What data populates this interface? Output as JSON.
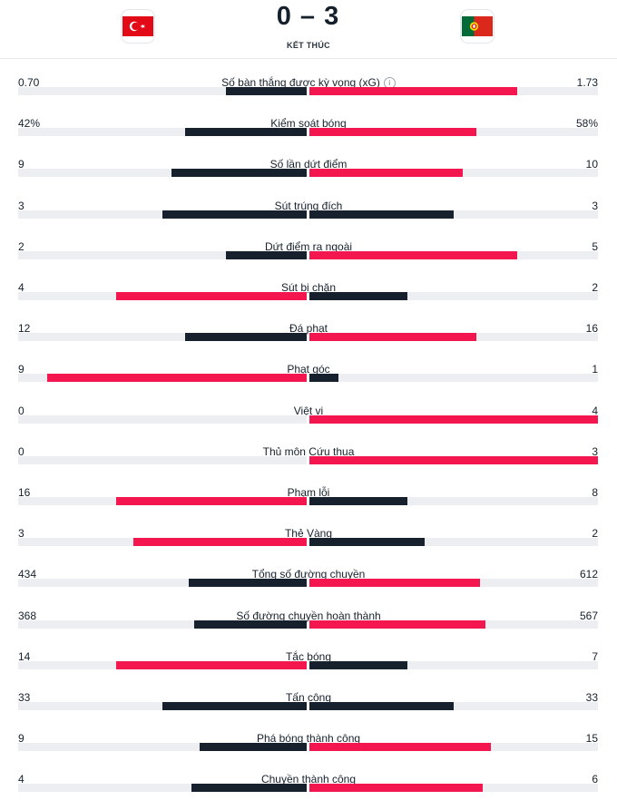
{
  "match": {
    "home_score": "0",
    "separator": "–",
    "away_score": "3",
    "status": "KẾT THÚC"
  },
  "colors": {
    "dark": "#17212e",
    "red": "#f4164f",
    "track": "#eceef1"
  },
  "icons": {
    "home_flag": "turkey-flag-icon",
    "away_flag": "portugal-flag-icon",
    "info": "info-icon"
  },
  "stats": [
    {
      "label": "Số bàn thắng được kỳ vọng (xG)",
      "home": "0.70",
      "away": "1.73",
      "home_fill": 0.28,
      "away_fill": 0.72,
      "home_color": "dark",
      "away_color": "red",
      "info": true
    },
    {
      "label": "Kiểm soát bóng",
      "home": "42%",
      "away": "58%",
      "home_fill": 0.42,
      "away_fill": 0.58,
      "home_color": "dark",
      "away_color": "red"
    },
    {
      "label": "Số lần dứt điểm",
      "home": "9",
      "away": "10",
      "home_fill": 0.47,
      "away_fill": 0.53,
      "home_color": "dark",
      "away_color": "red"
    },
    {
      "label": "Sút trúng đích",
      "home": "3",
      "away": "3",
      "home_fill": 0.5,
      "away_fill": 0.5,
      "home_color": "dark",
      "away_color": "dark"
    },
    {
      "label": "Dứt điểm ra ngoài",
      "home": "2",
      "away": "5",
      "home_fill": 0.28,
      "away_fill": 0.72,
      "home_color": "dark",
      "away_color": "red"
    },
    {
      "label": "Sút bị chặn",
      "home": "4",
      "away": "2",
      "home_fill": 0.66,
      "away_fill": 0.34,
      "home_color": "red",
      "away_color": "dark"
    },
    {
      "label": "Đá phạt",
      "home": "12",
      "away": "16",
      "home_fill": 0.42,
      "away_fill": 0.58,
      "home_color": "dark",
      "away_color": "red"
    },
    {
      "label": "Phạt góc",
      "home": "9",
      "away": "1",
      "home_fill": 0.9,
      "away_fill": 0.1,
      "home_color": "red",
      "away_color": "dark"
    },
    {
      "label": "Việt vị",
      "home": "0",
      "away": "4",
      "home_fill": 0,
      "away_fill": 1,
      "home_color": "dark",
      "away_color": "red"
    },
    {
      "label": "Thủ môn Cứu thua",
      "home": "0",
      "away": "3",
      "home_fill": 0,
      "away_fill": 1,
      "home_color": "dark",
      "away_color": "red"
    },
    {
      "label": "Phạm lỗi",
      "home": "16",
      "away": "8",
      "home_fill": 0.66,
      "away_fill": 0.34,
      "home_color": "red",
      "away_color": "dark"
    },
    {
      "label": "Thẻ Vàng",
      "home": "3",
      "away": "2",
      "home_fill": 0.6,
      "away_fill": 0.4,
      "home_color": "red",
      "away_color": "dark"
    },
    {
      "label": "Tổng số đường chuyền",
      "home": "434",
      "away": "612",
      "home_fill": 0.41,
      "away_fill": 0.59,
      "home_color": "dark",
      "away_color": "red"
    },
    {
      "label": "Số đường chuyền hoàn thành",
      "home": "368",
      "away": "567",
      "home_fill": 0.39,
      "away_fill": 0.61,
      "home_color": "dark",
      "away_color": "red"
    },
    {
      "label": "Tắc bóng",
      "home": "14",
      "away": "7",
      "home_fill": 0.66,
      "away_fill": 0.34,
      "home_color": "red",
      "away_color": "dark"
    },
    {
      "label": "Tấn công",
      "home": "33",
      "away": "33",
      "home_fill": 0.5,
      "away_fill": 0.5,
      "home_color": "dark",
      "away_color": "dark"
    },
    {
      "label": "Phá bóng thành công",
      "home": "9",
      "away": "15",
      "home_fill": 0.37,
      "away_fill": 0.63,
      "home_color": "dark",
      "away_color": "red"
    },
    {
      "label": "Chuyền thành công",
      "home": "4",
      "away": "6",
      "home_fill": 0.4,
      "away_fill": 0.6,
      "home_color": "dark",
      "away_color": "red"
    }
  ]
}
